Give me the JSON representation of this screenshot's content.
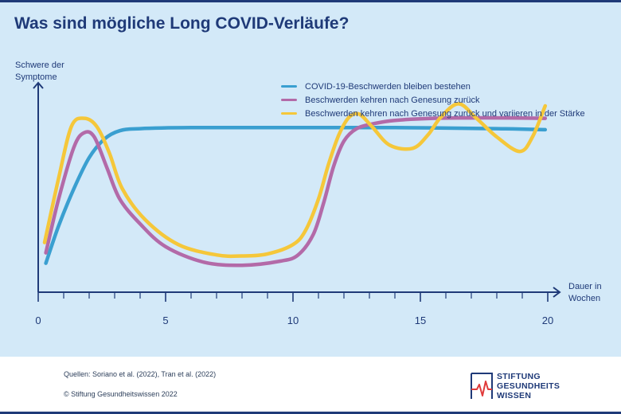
{
  "chart_data": {
    "type": "line",
    "title": "Was sind mögliche Long COVID-Verläufe?",
    "ylabel_lines": [
      "Schwere der",
      "Symptome"
    ],
    "xlabel_lines": [
      "Dauer in",
      "Wochen"
    ],
    "xlim": [
      0,
      20
    ],
    "ylim": [
      0,
      10
    ],
    "x_ticks": [
      0,
      5,
      10,
      15,
      20
    ],
    "x_minor_ticks": [
      1,
      2,
      3,
      4,
      6,
      7,
      8,
      9,
      11,
      12,
      13,
      14,
      16,
      17,
      18,
      19
    ],
    "grid": false,
    "legend_position": "top-right",
    "series": [
      {
        "name": "COVID-19-Beschwerden bleiben bestehen",
        "color": "#3a9fd0",
        "x": [
          0.3,
          0.8,
          1.4,
          2.0,
          2.6,
          3.2,
          4.0,
          6.0,
          10.0,
          14.0,
          18.0,
          19.9
        ],
        "y": [
          1.4,
          3.2,
          5.0,
          6.5,
          7.4,
          7.8,
          7.9,
          7.95,
          7.95,
          7.95,
          7.9,
          7.85
        ]
      },
      {
        "name": "Beschwerden kehren nach Genesung zurück",
        "color": "#b36aa8",
        "x": [
          0.3,
          0.8,
          1.4,
          1.8,
          2.2,
          2.7,
          3.2,
          4.0,
          5.0,
          6.5,
          8.0,
          9.5,
          10.2,
          10.8,
          11.2,
          11.6,
          12.0,
          12.5,
          13.2,
          14.0,
          15.5,
          17.0,
          18.5,
          19.9
        ],
        "y": [
          1.9,
          4.5,
          7.0,
          7.7,
          7.5,
          6.0,
          4.5,
          3.3,
          2.2,
          1.45,
          1.3,
          1.5,
          1.8,
          2.8,
          4.3,
          6.1,
          7.3,
          7.9,
          8.15,
          8.3,
          8.4,
          8.42,
          8.42,
          8.4
        ]
      },
      {
        "name": "Beschwerden kehren nach Genesung zurück und variieren in der Stärke",
        "color": "#f5c73a",
        "x": [
          0.25,
          0.8,
          1.3,
          1.8,
          2.3,
          2.8,
          3.3,
          4.2,
          5.5,
          7.0,
          8.0,
          9.0,
          10.0,
          10.5,
          11.0,
          11.4,
          11.8,
          12.2,
          12.6,
          13.1,
          13.8,
          14.7,
          15.3,
          15.8,
          16.5,
          17.2,
          18.0,
          18.9,
          19.4,
          19.9
        ],
        "y": [
          2.4,
          5.5,
          8.0,
          8.4,
          8.0,
          6.7,
          5.0,
          3.5,
          2.3,
          1.8,
          1.75,
          1.85,
          2.3,
          3.0,
          4.5,
          6.2,
          7.6,
          8.45,
          8.6,
          8.0,
          7.1,
          6.95,
          7.6,
          8.45,
          9.1,
          8.4,
          7.5,
          6.8,
          7.5,
          9.0
        ]
      }
    ]
  },
  "footer": {
    "sources": "Quellen: Soriano et al. (2022), Tran et al. (2022)",
    "copyright": "© Stiftung Gesundheitswissen 2022"
  },
  "logo": {
    "lines": [
      "STIFTUNG",
      "GESUNDHEITS",
      "WISSEN"
    ],
    "accent_color": "#e03b3b",
    "brand_color": "#1f3a78"
  },
  "colors": {
    "background": "#d3e9f8",
    "axis": "#1f3a78"
  }
}
